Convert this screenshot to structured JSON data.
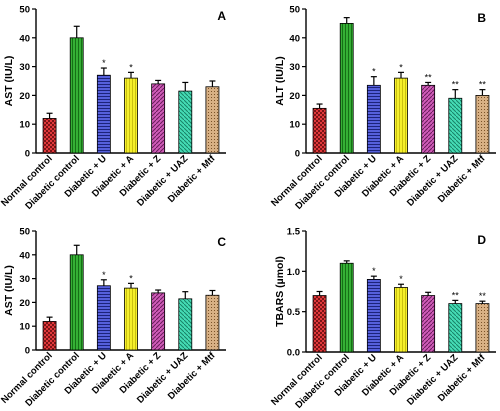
{
  "categories": [
    "Normal control",
    "Diabetic control",
    "Diabetic + U",
    "Diabetic + A",
    "Diabetic + Z",
    "Diabetic + UAZ",
    "Diabetic + Mtf"
  ],
  "bar_colors": [
    "#e0383a",
    "#2ea82e",
    "#4b55d4",
    "#f2ec1e",
    "#c246a8",
    "#3ad6ae",
    "#c9a070"
  ],
  "chart_data": [
    {
      "type": "bar",
      "panel_label": "A",
      "ylabel": "AST (IU/L)",
      "ylim": [
        0,
        50
      ],
      "yticks": [
        0,
        10,
        20,
        30,
        40,
        50
      ],
      "categories": [
        "Normal control",
        "Diabetic control",
        "Diabetic + U",
        "Diabetic + A",
        "Diabetic + Z",
        "Diabetic + UAZ",
        "Diabetic + Mtf"
      ],
      "values": [
        12,
        40,
        27,
        26,
        24,
        21.5,
        23
      ],
      "errors": [
        1.8,
        4,
        2.5,
        2,
        1.2,
        3,
        2
      ],
      "annotations": [
        "",
        "",
        "*",
        "*",
        "",
        "",
        ""
      ]
    },
    {
      "type": "bar",
      "panel_label": "B",
      "ylabel": "ALT (IU/L)",
      "ylim": [
        0,
        50
      ],
      "yticks": [
        0,
        10,
        20,
        30,
        40,
        50
      ],
      "categories": [
        "Normal control",
        "Diabetic control",
        "Diabetic + U",
        "Diabetic + A",
        "Diabetic + Z",
        "Diabetic + UAZ",
        "Diabetic + Mtf"
      ],
      "values": [
        15.5,
        45,
        23.5,
        26,
        23.5,
        19,
        20
      ],
      "errors": [
        1.5,
        2,
        3,
        2,
        1,
        3,
        2
      ],
      "annotations": [
        "",
        "",
        "*",
        "*",
        "**",
        "**",
        "**"
      ]
    },
    {
      "type": "bar",
      "panel_label": "C",
      "ylabel": "AST (IU/L)",
      "ylim": [
        0,
        50
      ],
      "yticks": [
        0,
        10,
        20,
        30,
        40,
        50
      ],
      "categories": [
        "Normal control",
        "Diabetic control",
        "Diabetic + U",
        "Diabetic + A",
        "Diabetic + Z",
        "Diabetic + UAZ",
        "Diabetic + Mtf"
      ],
      "values": [
        12,
        40,
        27,
        26,
        24,
        21.5,
        23
      ],
      "errors": [
        1.8,
        4,
        2.5,
        2,
        1.2,
        3,
        2
      ],
      "annotations": [
        "",
        "",
        "*",
        "*",
        "",
        "",
        ""
      ]
    },
    {
      "type": "bar",
      "panel_label": "D",
      "ylabel": "TBARS (µmol)",
      "ylim": [
        0,
        1.5
      ],
      "yticks": [
        0.0,
        0.5,
        1.0,
        1.5
      ],
      "ytick_labels": [
        "0.0",
        "0.5",
        "1.0",
        "1.5"
      ],
      "categories": [
        "Normal control",
        "Diabetic control",
        "Diabetic + U",
        "Diabetic + A",
        "Diabetic + Z",
        "Diabetic + UAZ",
        "Diabetic + Mtf"
      ],
      "values": [
        0.7,
        1.1,
        0.9,
        0.8,
        0.7,
        0.6,
        0.6
      ],
      "errors": [
        0.05,
        0.03,
        0.04,
        0.04,
        0.04,
        0.04,
        0.03
      ],
      "annotations": [
        "",
        "",
        "*",
        "*",
        "",
        "**",
        "**"
      ]
    }
  ]
}
